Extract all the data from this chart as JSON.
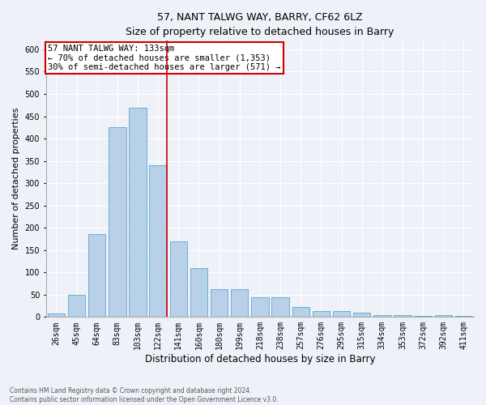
{
  "title1": "57, NANT TALWG WAY, BARRY, CF62 6LZ",
  "title2": "Size of property relative to detached houses in Barry",
  "xlabel": "Distribution of detached houses by size in Barry",
  "ylabel": "Number of detached properties",
  "categories": [
    "26sqm",
    "45sqm",
    "64sqm",
    "83sqm",
    "103sqm",
    "122sqm",
    "141sqm",
    "160sqm",
    "180sqm",
    "199sqm",
    "218sqm",
    "238sqm",
    "257sqm",
    "276sqm",
    "295sqm",
    "315sqm",
    "334sqm",
    "353sqm",
    "372sqm",
    "392sqm",
    "411sqm"
  ],
  "values": [
    7,
    50,
    185,
    425,
    470,
    340,
    170,
    110,
    63,
    63,
    45,
    45,
    22,
    13,
    13,
    10,
    5,
    5,
    2,
    5,
    2
  ],
  "bar_color": "#b8d0e8",
  "bar_edge_color": "#6aaed6",
  "vline_x": 5.45,
  "vline_color": "#cc0000",
  "annotation_line1": "57 NANT TALWG WAY: 133sqm",
  "annotation_line2": "← 70% of detached houses are smaller (1,353)",
  "annotation_line3": "30% of semi-detached houses are larger (571) →",
  "annotation_box_color": "#cc0000",
  "ylim": [
    0,
    620
  ],
  "yticks": [
    0,
    50,
    100,
    150,
    200,
    250,
    300,
    350,
    400,
    450,
    500,
    550,
    600
  ],
  "footer1": "Contains HM Land Registry data © Crown copyright and database right 2024.",
  "footer2": "Contains public sector information licensed under the Open Government Licence v3.0.",
  "bg_color": "#eef2f8",
  "plot_bg_color": "#eef2f8",
  "title_fontsize": 9,
  "ylabel_fontsize": 8,
  "xlabel_fontsize": 8.5,
  "tick_fontsize": 7,
  "annotation_fontsize": 7.5,
  "footer_fontsize": 5.5
}
